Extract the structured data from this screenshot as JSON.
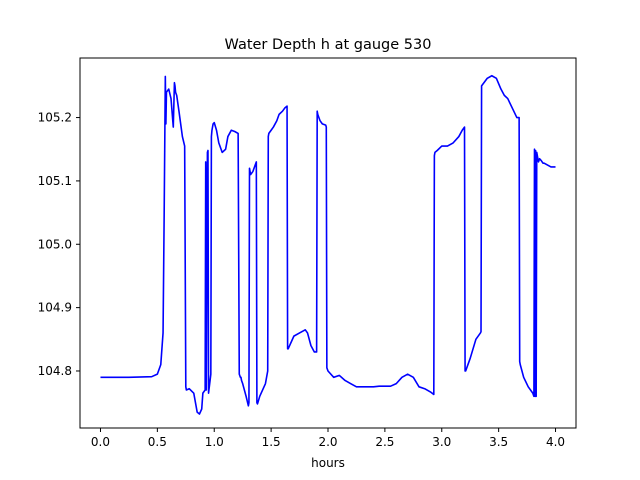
{
  "chart_data": {
    "type": "line",
    "title": "Water Depth h at gauge 530",
    "xlabel": "hours",
    "ylabel": "",
    "xlim": [
      -0.18,
      4.18
    ],
    "ylim": [
      104.71,
      105.294
    ],
    "xticks": [
      0.0,
      0.5,
      1.0,
      1.5,
      2.0,
      2.5,
      3.0,
      3.5,
      4.0
    ],
    "xtick_labels": [
      "0.0",
      "0.5",
      "1.0",
      "1.5",
      "2.0",
      "2.5",
      "3.0",
      "3.5",
      "4.0"
    ],
    "yticks": [
      104.8,
      104.9,
      105.0,
      105.1,
      105.2
    ],
    "ytick_labels": [
      "104.8",
      "104.9",
      "105.0",
      "105.1",
      "105.2"
    ],
    "grid": false,
    "series": [
      {
        "color": "#0000ff",
        "x": [
          0.0,
          0.25,
          0.45,
          0.5,
          0.53,
          0.55,
          0.56,
          0.57,
          0.575,
          0.58,
          0.6,
          0.62,
          0.64,
          0.65,
          0.655,
          0.66,
          0.67,
          0.69,
          0.72,
          0.74,
          0.75,
          0.755,
          0.78,
          0.82,
          0.85,
          0.87,
          0.89,
          0.9,
          0.92,
          0.925,
          0.93,
          0.94,
          0.945,
          0.95,
          0.96,
          0.97,
          0.975,
          0.98,
          0.99,
          1.0,
          1.02,
          1.04,
          1.07,
          1.1,
          1.12,
          1.15,
          1.18,
          1.21,
          1.22,
          1.23,
          1.235,
          1.24,
          1.25,
          1.28,
          1.3,
          1.305,
          1.31,
          1.32,
          1.34,
          1.36,
          1.37,
          1.375,
          1.38,
          1.4,
          1.45,
          1.47,
          1.475,
          1.48,
          1.5,
          1.52,
          1.55,
          1.57,
          1.6,
          1.62,
          1.64,
          1.645,
          1.65,
          1.7,
          1.75,
          1.8,
          1.82,
          1.85,
          1.88,
          1.9,
          1.905,
          1.91,
          1.93,
          1.95,
          1.98,
          1.985,
          1.99,
          2.0,
          2.05,
          2.1,
          2.15,
          2.2,
          2.25,
          2.3,
          2.35,
          2.4,
          2.45,
          2.5,
          2.55,
          2.6,
          2.65,
          2.7,
          2.75,
          2.8,
          2.85,
          2.9,
          2.93,
          2.935,
          2.94,
          2.96,
          3.0,
          3.05,
          3.1,
          3.15,
          3.18,
          3.2,
          3.205,
          3.21,
          3.25,
          3.3,
          3.34,
          3.345,
          3.35,
          3.4,
          3.44,
          3.48,
          3.52,
          3.55,
          3.58,
          3.62,
          3.66,
          3.68,
          3.685,
          3.69,
          3.72,
          3.76,
          3.8,
          3.81,
          3.815,
          3.82,
          3.825,
          3.83,
          3.835,
          3.84,
          3.85,
          3.86,
          3.875,
          3.89,
          3.9,
          3.93,
          3.96,
          4.0
        ],
        "y": [
          104.79,
          104.79,
          104.791,
          104.795,
          104.81,
          104.86,
          105.05,
          105.265,
          105.19,
          105.24,
          105.245,
          105.23,
          105.185,
          105.255,
          105.25,
          105.24,
          105.235,
          105.21,
          105.17,
          105.155,
          104.775,
          104.77,
          104.772,
          104.765,
          104.735,
          104.732,
          104.74,
          104.765,
          104.77,
          105.13,
          104.77,
          105.145,
          105.148,
          104.765,
          104.78,
          104.795,
          105.17,
          105.18,
          105.19,
          105.192,
          105.18,
          105.16,
          105.145,
          105.15,
          105.17,
          105.18,
          105.178,
          105.175,
          104.795,
          104.79,
          104.79,
          104.785,
          104.78,
          104.76,
          104.745,
          104.75,
          105.12,
          105.11,
          105.115,
          105.125,
          105.13,
          104.75,
          104.748,
          104.76,
          104.78,
          104.8,
          105.17,
          105.175,
          105.18,
          105.185,
          105.195,
          105.205,
          105.21,
          105.215,
          105.218,
          104.835,
          104.835,
          104.855,
          104.86,
          104.865,
          104.86,
          104.84,
          104.83,
          104.83,
          105.21,
          105.205,
          105.195,
          105.19,
          105.188,
          105.185,
          104.805,
          104.8,
          104.79,
          104.793,
          104.785,
          104.78,
          104.775,
          104.775,
          104.775,
          104.775,
          104.776,
          104.776,
          104.776,
          104.78,
          104.79,
          104.795,
          104.79,
          104.775,
          104.772,
          104.767,
          104.763,
          105.14,
          105.145,
          105.148,
          105.155,
          105.155,
          105.16,
          105.17,
          105.18,
          105.185,
          104.8,
          104.8,
          104.82,
          104.85,
          104.86,
          104.862,
          105.25,
          105.262,
          105.266,
          105.262,
          105.245,
          105.235,
          105.23,
          105.215,
          105.2,
          105.2,
          104.815,
          104.81,
          104.79,
          104.775,
          104.765,
          104.76,
          105.15,
          104.76,
          105.148,
          104.76,
          105.145,
          105.14,
          105.13,
          105.135,
          105.132,
          105.128,
          105.128,
          105.125,
          105.122,
          105.122
        ]
      }
    ]
  }
}
